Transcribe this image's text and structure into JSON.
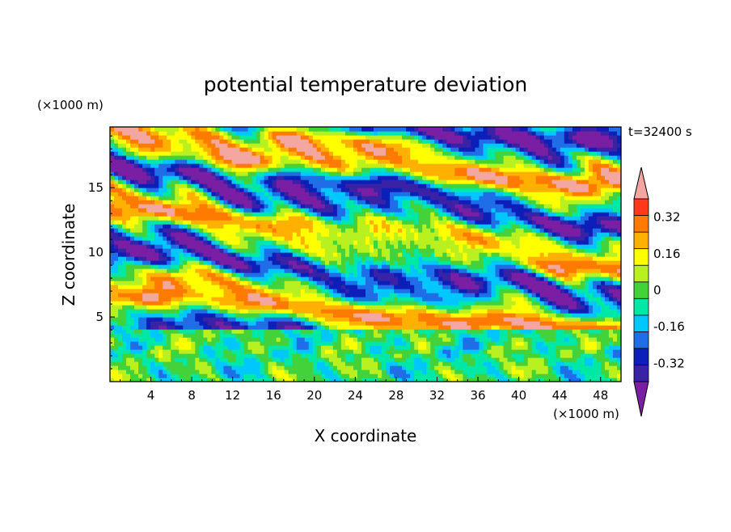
{
  "chart_data": {
    "type": "heatmap",
    "title": "potential temperature deviation",
    "xlabel": "X coordinate",
    "ylabel": "Z coordinate",
    "x_unit": "(×1000 m)",
    "y_unit": "(×1000 m)",
    "time_label": "t=32400 s",
    "xlim": [
      0,
      50
    ],
    "ylim": [
      0,
      19.7
    ],
    "x_ticks": [
      4,
      8,
      12,
      16,
      20,
      24,
      28,
      32,
      36,
      40,
      44,
      48
    ],
    "y_ticks": [
      5,
      10,
      15
    ],
    "colorbar": {
      "tick_labels": [
        "0.32",
        "0.16",
        "0",
        "-0.16",
        "-0.32"
      ],
      "tick_values": [
        0.32,
        0.16,
        0,
        -0.16,
        -0.32
      ],
      "levels": [
        -0.4,
        -0.32,
        -0.24,
        -0.16,
        -0.08,
        0,
        0.08,
        0.16,
        0.24,
        0.32,
        0.4
      ],
      "colors": [
        "#7a1fa3",
        "#3a22a6",
        "#0c1fb8",
        "#1f6ee8",
        "#00c8ff",
        "#00e8a6",
        "#44d23a",
        "#b8f020",
        "#ffff00",
        "#ffb000",
        "#ff7a00",
        "#ff3a1a",
        "#f4a7a0"
      ]
    },
    "layers": [
      {
        "z_range": [
          0,
          4.2
        ],
        "regime": "mixed boundary-layer eddies, cyan/green/yellow with blue and red cells"
      },
      {
        "z_range": [
          4.2,
          19.7
        ],
        "regime": "stratified bands alternating pink (positive) and purple (negative)"
      }
    ],
    "grid": false
  }
}
